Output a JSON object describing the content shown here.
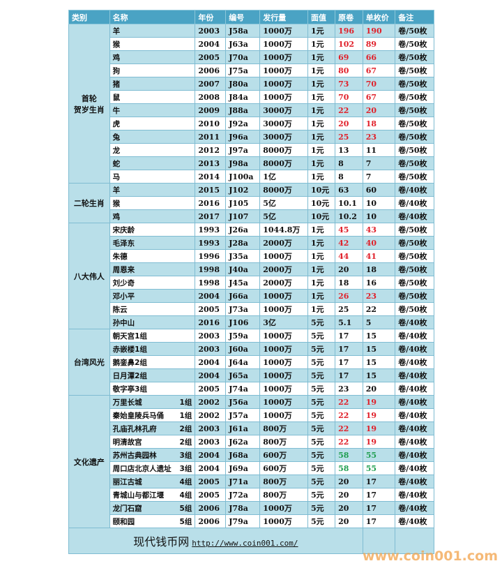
{
  "headers": [
    "类别",
    "名称",
    "年份",
    "编号",
    "发行量",
    "面值",
    "原卷",
    "单枚价",
    "备注"
  ],
  "groups": [
    {
      "category": "首轮\n贺岁生肖",
      "items": [
        [
          "羊",
          "",
          "2003",
          "J58a",
          "1000万",
          "1元",
          "196",
          "190",
          "卷/50枚",
          "red"
        ],
        [
          "猴",
          "",
          "2004",
          "J63a",
          "1000万",
          "1元",
          "102",
          "89",
          "卷/50枚",
          "red"
        ],
        [
          "鸡",
          "",
          "2005",
          "J70a",
          "1000万",
          "1元",
          "69",
          "66",
          "卷/50枚",
          "red"
        ],
        [
          "狗",
          "",
          "2006",
          "J75a",
          "1000万",
          "1元",
          "80",
          "67",
          "卷/50枚",
          "red"
        ],
        [
          "猪",
          "",
          "2007",
          "J80a",
          "1000万",
          "1元",
          "73",
          "70",
          "卷/50枚",
          "red"
        ],
        [
          "鼠",
          "",
          "2008",
          "J84a",
          "1000万",
          "1元",
          "70",
          "67",
          "卷/50枚",
          "red"
        ],
        [
          "牛",
          "",
          "2009",
          "J88a",
          "3000万",
          "1元",
          "22",
          "20",
          "卷/50枚",
          "red"
        ],
        [
          "虎",
          "",
          "2010",
          "J92a",
          "3000万",
          "1元",
          "20",
          "18",
          "卷/50枚",
          "red"
        ],
        [
          "兔",
          "",
          "2011",
          "J96a",
          "3000万",
          "1元",
          "25",
          "23",
          "卷/50枚",
          "red"
        ],
        [
          "龙",
          "",
          "2012",
          "J97a",
          "8000万",
          "1元",
          "13",
          "11",
          "卷/50枚",
          ""
        ],
        [
          "蛇",
          "",
          "2013",
          "J98a",
          "8000万",
          "1元",
          "8",
          "7",
          "卷/50枚",
          ""
        ],
        [
          "马",
          "",
          "2014",
          "J100a",
          "1亿",
          "1元",
          "8",
          "7",
          "卷/50枚",
          ""
        ]
      ]
    },
    {
      "category": "二轮生肖",
      "items": [
        [
          "羊",
          "",
          "2015",
          "J102",
          "8000万",
          "10元",
          "63",
          "60",
          "卷/40枚",
          ""
        ],
        [
          "猴",
          "",
          "2016",
          "J105",
          "5亿",
          "10元",
          "10.1",
          "10",
          "卷/40枚",
          ""
        ],
        [
          "鸡",
          "",
          "2017",
          "J107",
          "5亿",
          "10元",
          "10.2",
          "10",
          "卷/40枚",
          ""
        ]
      ]
    },
    {
      "category": "八大伟人",
      "items": [
        [
          "宋庆龄",
          "",
          "1993",
          "J26a",
          "1044.8万",
          "1元",
          "45",
          "43",
          "卷/50枚",
          "red"
        ],
        [
          "毛泽东",
          "",
          "1993",
          "J28a",
          "2000万",
          "1元",
          "42",
          "40",
          "卷/50枚",
          "red"
        ],
        [
          "朱德",
          "",
          "1996",
          "J35a",
          "1000万",
          "1元",
          "44",
          "41",
          "卷/50枚",
          "red"
        ],
        [
          "周恩来",
          "",
          "1998",
          "J40a",
          "2000万",
          "1元",
          "20",
          "18",
          "卷/50枚",
          ""
        ],
        [
          "刘少奇",
          "",
          "1998",
          "J45a",
          "2000万",
          "1元",
          "18",
          "16",
          "卷/50枚",
          ""
        ],
        [
          "邓小平",
          "",
          "2004",
          "J66a",
          "1000万",
          "1元",
          "26",
          "23",
          "卷/50枚",
          "red"
        ],
        [
          "陈云",
          "",
          "2005",
          "J73a",
          "1000万",
          "1元",
          "25",
          "22",
          "卷/50枚",
          ""
        ],
        [
          "孙中山",
          "",
          "2016",
          "J106",
          "3亿",
          "5元",
          "5.1",
          "5",
          "卷/40枚",
          ""
        ]
      ]
    },
    {
      "category": "台湾风光",
      "items": [
        [
          "朝天宫1组",
          "",
          "2003",
          "J59a",
          "1000万",
          "5元",
          "17",
          "15",
          "卷/40枚",
          ""
        ],
        [
          "赤嵌楼1组",
          "",
          "2003",
          "J60a",
          "1000万",
          "5元",
          "17",
          "15",
          "卷/40枚",
          ""
        ],
        [
          "鹅銮鼻2组",
          "",
          "2004",
          "J64a",
          "1000万",
          "5元",
          "17",
          "15",
          "卷/40枚",
          ""
        ],
        [
          "日月潭2组",
          "",
          "2004",
          "J65a",
          "1000万",
          "5元",
          "17",
          "15",
          "卷/40枚",
          ""
        ],
        [
          "敬字亭3组",
          "",
          "2005",
          "J74a",
          "1000万",
          "5元",
          "23",
          "20",
          "卷/40枚",
          ""
        ]
      ]
    },
    {
      "category": "文化遗产",
      "items": [
        [
          "万里长城",
          "1组",
          "2002",
          "J56a",
          "1000万",
          "5元",
          "22",
          "19",
          "卷/40枚",
          "red"
        ],
        [
          "秦始皇陵兵马俑",
          "1组",
          "2002",
          "J57a",
          "1000万",
          "5元",
          "22",
          "19",
          "卷/40枚",
          "red"
        ],
        [
          "孔庙孔林孔府",
          "2组",
          "2003",
          "J61a",
          "800万",
          "5元",
          "22",
          "19",
          "卷/40枚",
          "red"
        ],
        [
          "明清故宫",
          "2组",
          "2003",
          "J62a",
          "800万",
          "5元",
          "22",
          "19",
          "卷/40枚",
          "red"
        ],
        [
          "苏州古典园林",
          "3组",
          "2004",
          "J68a",
          "600万",
          "5元",
          "58",
          "55",
          "卷/40枚",
          "green"
        ],
        [
          "周口店北京人遗址",
          "3组",
          "2004",
          "J69a",
          "600万",
          "5元",
          "58",
          "55",
          "卷/40枚",
          "green"
        ],
        [
          "丽江古城",
          "4组",
          "2005",
          "J71a",
          "800万",
          "5元",
          "20",
          "17",
          "卷/40枚",
          ""
        ],
        [
          "青城山与都江堰",
          "4组",
          "2005",
          "J72a",
          "800万",
          "5元",
          "20",
          "17",
          "卷/40枚",
          ""
        ],
        [
          "龙门石窟",
          "5组",
          "2006",
          "J78a",
          "1000万",
          "5元",
          "20",
          "17",
          "卷/40枚",
          ""
        ],
        [
          "颐和园",
          "5组",
          "2006",
          "J79a",
          "1000万",
          "5元",
          "20",
          "17",
          "卷/40枚",
          ""
        ]
      ]
    }
  ],
  "footer": {
    "site_name": "现代钱币网",
    "url": "http://www.coin001.com/"
  },
  "watermark": "www.coin001.com",
  "colors": {
    "header": "#4aa3c4",
    "stripe": "#b9dfe9",
    "red": "#e0202a",
    "green": "#1f9e4f"
  }
}
